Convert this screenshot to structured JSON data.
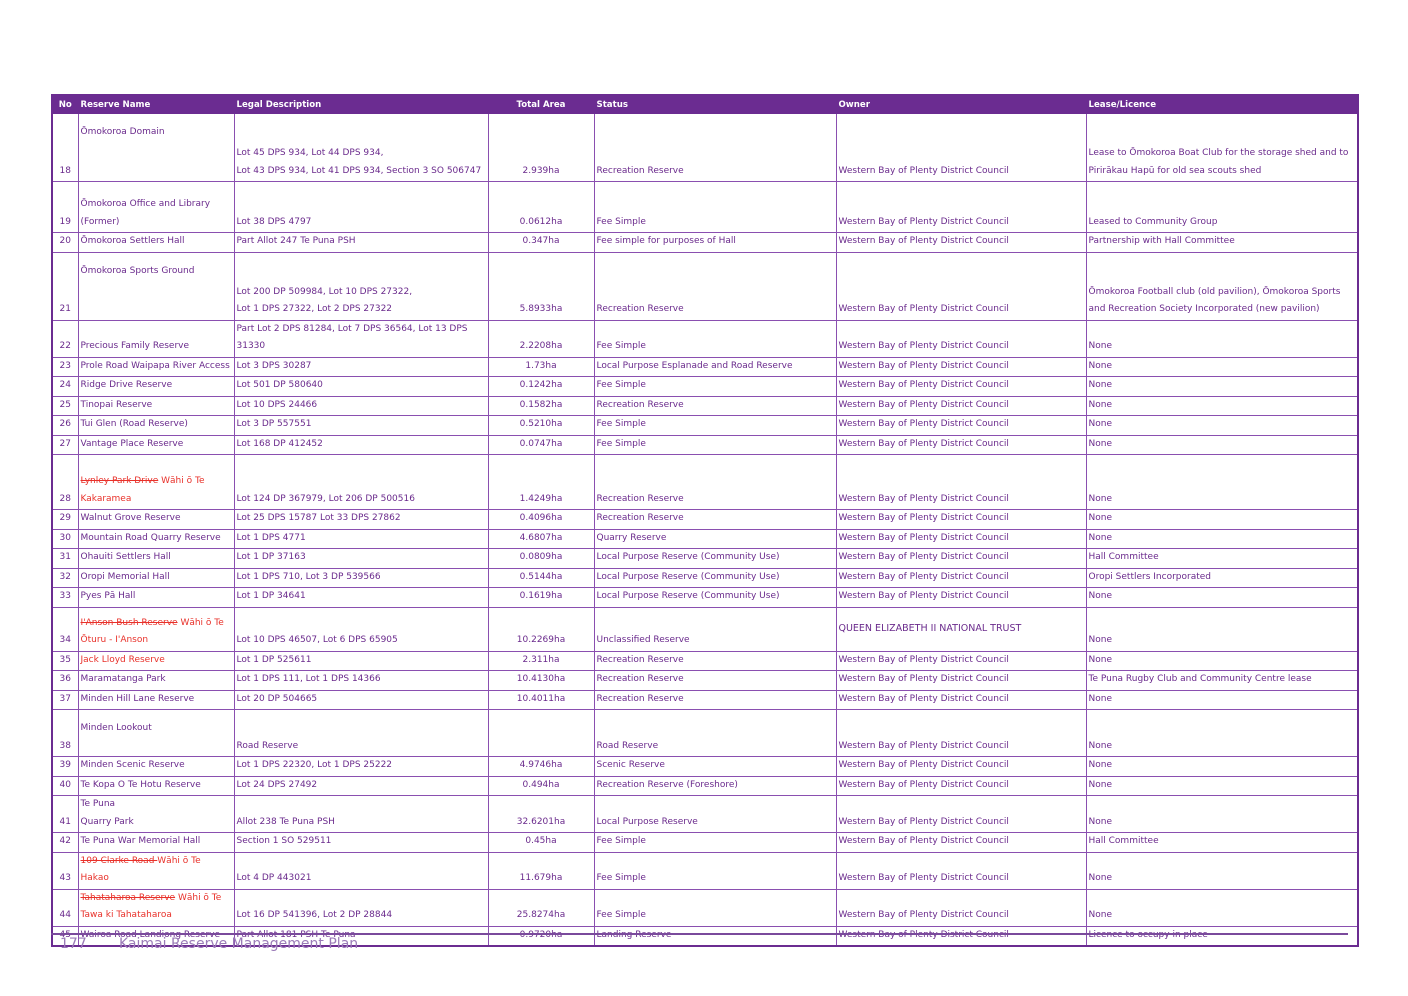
{
  "table": {
    "columns": [
      "No",
      "Reserve Name",
      "Legal Description",
      "Total Area",
      "Status",
      "Owner",
      "Lease/Licence"
    ],
    "rows": [
      {
        "no": 18,
        "name": "Ōmokoroa Domain",
        "legal": [
          "Lot 45 DPS 934, Lot 44 DPS 934,",
          "Lot 43 DPS 934,  Lot 41 DPS 934, Section 3 SO 506747"
        ],
        "area": "2.939ha",
        "status": "Recreation Reserve",
        "owner": "Western Bay of Plenty District Council",
        "lease": [
          "Lease to Ōmokoroa Boat Club for the storage shed and to",
          "Pirirākau Hapū for old sea scouts shed"
        ]
      },
      {
        "no": 19,
        "name": [
          "Ōmokoroa Office and Library",
          "(Former)"
        ],
        "legal": "Lot 38 DPS 4797",
        "area": "0.0612ha",
        "status": "Fee Simple",
        "owner": "Western Bay of Plenty District Council",
        "lease": "Leased to Community Group"
      },
      {
        "no": 20,
        "name": "Ōmokoroa Settlers Hall",
        "legal": "Part Allot 247 Te Puna PSH",
        "area": "0.347ha",
        "status": "Fee simple for purposes of Hall",
        "owner": "Western Bay of Plenty District Council",
        "lease": "Partnership with Hall Committee"
      },
      {
        "no": 21,
        "name": "Ōmokoroa Sports Ground",
        "legal": [
          "Lot 200 DP 509984, Lot 10 DPS 27322,",
          "Lot 1 DPS 27322, Lot 2 DPS 27322"
        ],
        "area": "5.8933ha",
        "status": "Recreation Reserve",
        "owner": "Western Bay of Plenty District Council",
        "lease": [
          "Ōmokoroa Football club (old pavilion), Ōmokoroa Sports",
          "and Recreation Society Incorporated (new pavilion)"
        ]
      },
      {
        "no": 22,
        "name": "Precious Family Reserve",
        "legal": "Part Lot 2 DPS 81284, Lot 7 DPS 36564, Lot 13 DPS 31330",
        "area": "2.2208ha",
        "status": "Fee Simple",
        "owner": "Western Bay of Plenty District Council",
        "lease": "None"
      },
      {
        "no": 23,
        "name": "Prole Road Waipapa River Access",
        "legal": "Lot 3 DPS 30287",
        "area": "1.73ha",
        "status": "Local Purpose Esplanade and Road Reserve",
        "owner": "Western Bay of Plenty District Council",
        "lease": "None"
      },
      {
        "no": 24,
        "name": "Ridge Drive Reserve",
        "legal": "Lot 501 DP 580640",
        "area": "0.1242ha",
        "status": "Fee Simple",
        "owner": "Western Bay of Plenty District Council",
        "lease": "None"
      },
      {
        "no": 25,
        "name": "Tinopai Reserve",
        "legal": "Lot 10 DPS 24466",
        "area": "0.1582ha",
        "status": "Recreation Reserve",
        "owner": "Western Bay of Plenty District Council",
        "lease": "None"
      },
      {
        "no": 26,
        "name": "Tui Glen (Road Reserve)",
        "legal": "Lot 3 DP 557551",
        "area": "0.5210ha",
        "status": "Fee Simple",
        "owner": "Western Bay of Plenty District Council",
        "lease": "None"
      },
      {
        "no": 27,
        "name": "Vantage Place Reserve",
        "legal": "Lot 168 DP 412452",
        "area": "0.0747ha",
        "status": "Fee Simple",
        "owner": "Western Bay of Plenty District Council",
        "lease": "None"
      },
      {
        "no": 28,
        "name": {
          "deleted": "Lynley Park Drive",
          "inserted": "Wāhi ō Te Kakaramea"
        },
        "legal": "Lot 124 DP 367979, Lot 206 DP 500516",
        "area": "1.4249ha",
        "status": "Recreation Reserve",
        "owner": "Western Bay of Plenty District Council",
        "lease": "None"
      },
      {
        "no": 29,
        "name": "Walnut Grove Reserve",
        "legal": "Lot 25 DPS 15787 Lot 33 DPS 27862",
        "area": "0.4096ha",
        "status": "Recreation Reserve",
        "owner": "Western Bay of Plenty District Council",
        "lease": "None"
      },
      {
        "no": 30,
        "name": "Mountain Road Quarry Reserve",
        "legal": "Lot 1 DPS 4771",
        "area": "4.6807ha",
        "status": "Quarry Reserve",
        "owner": "Western Bay of Plenty District Council",
        "lease": "None"
      },
      {
        "no": 31,
        "name": "Ohauiti Settlers Hall",
        "legal": "Lot 1 DP 37163",
        "area": "0.0809ha",
        "status": "Local Purpose Reserve (Community Use)",
        "owner": "Western Bay of Plenty District Council",
        "lease": "Hall Committee"
      },
      {
        "no": 32,
        "name": "Oropi Memorial Hall",
        "legal": "Lot 1 DPS 710, Lot 3 DP 539566",
        "area": "0.5144ha",
        "status": "Local Purpose Reserve (Community Use)",
        "owner": "Western Bay of Plenty District Council",
        "lease": "Oropi Settlers Incorporated"
      },
      {
        "no": 33,
        "name": "Pyes Pā Hall",
        "legal": "Lot 1 DP 34641",
        "area": "0.1619ha",
        "status": "Local Purpose Reserve (Community Use)",
        "owner": "Western Bay of Plenty District Council",
        "lease": "None"
      },
      {
        "no": 34,
        "name": {
          "deleted": "I'Anson Bush Reserve",
          "inserted": "Wāhi ō Te Ōturu - I'Anson"
        },
        "legal": "Lot 10 DPS 46507, Lot 6 DPS 65905",
        "area": "10.2269ha",
        "status": "Unclassified Reserve",
        "owner": "QUEEN ELIZABETH II NATIONAL TRUST",
        "lease": "None"
      },
      {
        "no": 35,
        "name": {
          "inserted": "Jack Lloyd Reserve"
        },
        "legal": "Lot 1 DP 525611",
        "area": "2.311ha",
        "status": "Recreation Reserve",
        "owner": "Western Bay of Plenty District Council",
        "lease": "None"
      },
      {
        "no": 36,
        "name": "Maramatanga Park",
        "legal": "Lot 1 DPS 111, Lot 1 DPS 14366",
        "area": "10.4130ha",
        "status": "Recreation Reserve",
        "owner": "Western Bay of Plenty District Council",
        "lease": "Te Puna Rugby Club and Community Centre lease"
      },
      {
        "no": 37,
        "name": "Minden Hill Lane Reserve",
        "legal": "Lot 20 DP 504665",
        "area": "10.4011ha",
        "status": "Recreation Reserve",
        "owner": "Western Bay of Plenty District Council",
        "lease": "None"
      },
      {
        "no": 38,
        "name": "Minden Lookout",
        "legal": "Road Reserve",
        "area": null,
        "status": "Road Reserve",
        "owner": "Western Bay of Plenty District Council",
        "lease": "None"
      },
      {
        "no": 39,
        "name": "Minden Scenic Reserve",
        "legal": "Lot 1 DPS 22320, Lot 1 DPS 25222",
        "area": "4.9746ha",
        "status": "Scenic Reserve",
        "owner": "Western Bay of Plenty District Council",
        "lease": "None"
      },
      {
        "no": 40,
        "name": "Te Kopa O Te Hotu Reserve",
        "legal": "Lot 24 DPS 27492",
        "area": "0.494ha",
        "status": "Recreation Reserve (Foreshore)",
        "owner": "Western Bay of Plenty District Council",
        "lease": "None"
      },
      {
        "no": 41,
        "name": [
          "Te Puna",
          "Quarry Park"
        ],
        "legal": "Allot 238 Te Puna PSH",
        "area": "32.6201ha",
        "status": "Local Purpose Reserve",
        "owner": "Western Bay of Plenty District Council",
        "lease": "None"
      },
      {
        "no": 42,
        "name": "Te Puna War Memorial Hall",
        "legal": "Section 1 SO 529511",
        "area": "0.45ha",
        "status": "Fee Simple",
        "owner": "Western Bay of Plenty District Council",
        "lease": "Hall Committee"
      },
      {
        "no": 43,
        "name": {
          "deleted": "109 Clarke Road ",
          "inserted": "Wāhi ō Te Hakao"
        },
        "legal": "Lot 4 DP 443021",
        "area": "11.679ha",
        "status": "Fee Simple",
        "owner": "Western Bay of Plenty District Council",
        "lease": "None"
      },
      {
        "no": 44,
        "name": {
          "deleted": "Tahataharoa Reserve",
          "inserted": "Wāhi ō Te Tawa ki Tahataharoa"
        },
        "legal": "Lot 16 DP 541396, Lot 2 DP 28844",
        "area": "25.8274ha",
        "status": "Fee Simple",
        "owner": "Western Bay of Plenty District Council",
        "lease": "None"
      },
      {
        "no": 45,
        "name": "Wairoa Road Landiong Reserve",
        "legal": "Part Allot 181 PSH Te Puna",
        "area": "0.9720ha",
        "status": "Landing Reserve",
        "owner": "Western Bay of Plenty District Council",
        "lease": "Licence to occupy in place"
      }
    ]
  },
  "footer": {
    "page": "177",
    "title": "Kaimai Reserve Management Plan"
  }
}
